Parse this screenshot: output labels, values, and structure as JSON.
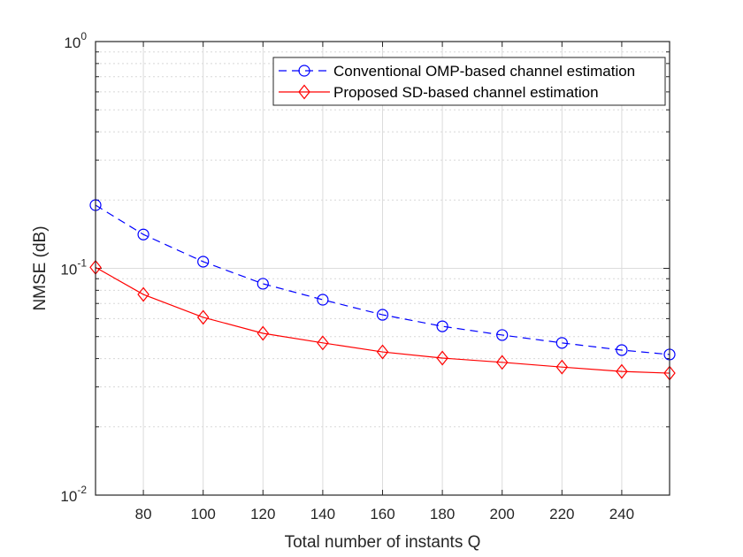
{
  "chart_data": {
    "type": "line",
    "title": "",
    "xlabel": "Total number of instants Q",
    "ylabel": "NMSE (dB)",
    "xlim": [
      64,
      256
    ],
    "ylim": [
      0.01,
      1
    ],
    "yscale": "log",
    "grid": true,
    "legend_position": "top-right",
    "x_ticks": [
      80,
      100,
      120,
      140,
      160,
      180,
      200,
      220,
      240
    ],
    "x_tick_labels": [
      "80",
      "100",
      "120",
      "140",
      "160",
      "180",
      "200",
      "220",
      "240"
    ],
    "y_ticks": [
      {
        "value": 1,
        "base": "10",
        "exp": "0"
      },
      {
        "value": 0.1,
        "base": "10",
        "exp": "-1"
      },
      {
        "value": 0.01,
        "base": "10",
        "exp": "-2"
      }
    ],
    "x": [
      64,
      80,
      100,
      120,
      140,
      160,
      180,
      200,
      220,
      240,
      256
    ],
    "series": [
      {
        "name": "Conventional OMP-based channel estimation",
        "color": "#0000ff",
        "line_style": "dashed",
        "marker": "circle",
        "values": [
          0.19,
          0.141,
          0.107,
          0.0855,
          0.0727,
          0.0624,
          0.0555,
          0.0508,
          0.0469,
          0.0436,
          0.0417
        ]
      },
      {
        "name": "Proposed SD-based channel estimation",
        "color": "#ff0000",
        "line_style": "solid",
        "marker": "diamond",
        "values": [
          0.101,
          0.0767,
          0.0608,
          0.0517,
          0.0469,
          0.0428,
          0.0402,
          0.0385,
          0.0367,
          0.0351,
          0.0345
        ]
      }
    ]
  }
}
